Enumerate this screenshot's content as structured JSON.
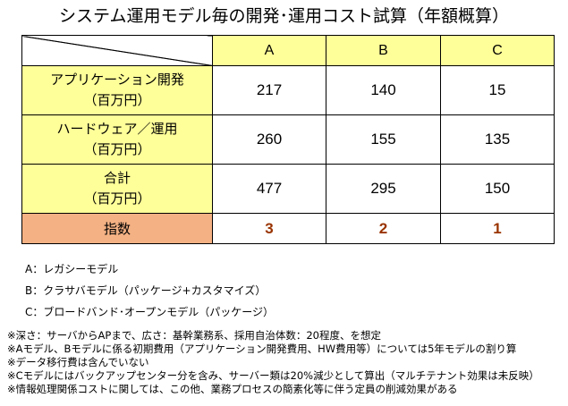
{
  "title": "システム運用モデル毎の開発･運用コスト試算（年額概算）",
  "table": {
    "columns": [
      "A",
      "B",
      "C"
    ],
    "rows": [
      {
        "label": "アプリケーション開発",
        "unit": "（百万円）",
        "values": [
          "217",
          "140",
          "15"
        ]
      },
      {
        "label": "ハードウェア／運用",
        "unit": "（百万円）",
        "values": [
          "260",
          "155",
          "135"
        ]
      },
      {
        "label": "合計",
        "unit": "（百万円）",
        "values": [
          "477",
          "295",
          "150"
        ]
      }
    ],
    "index_row": {
      "label": "指数",
      "values": [
        "3",
        "2",
        "1"
      ]
    }
  },
  "colors": {
    "header_fill": "#ffff99",
    "index_fill": "#f4b183",
    "index_text": "#993300"
  },
  "legend": [
    "A：レガシーモデル",
    "B：クラサバモデル（パッケージ+カスタマイズ）",
    "C：ブロードバンド･オープンモデル（パッケージ）"
  ],
  "notes": [
    "※深さ：サーバからAPまで、広さ：基幹業務系、採用自治体数：20程度、を想定",
    "※Aモデル、Bモデルに係る初期費用（アプリケーション開発費用、HW費用等）については5年モデルの割り算",
    "※データ移行費は含んでいない",
    "※Cモデルにはバックアップセンター分を含み、サーバー類は20%減少として算出（マルチテナント効果は未反映）",
    "※情報処理関係コストに関しては、この他、業務プロセスの簡素化等に伴う定員の削減効果がある"
  ]
}
